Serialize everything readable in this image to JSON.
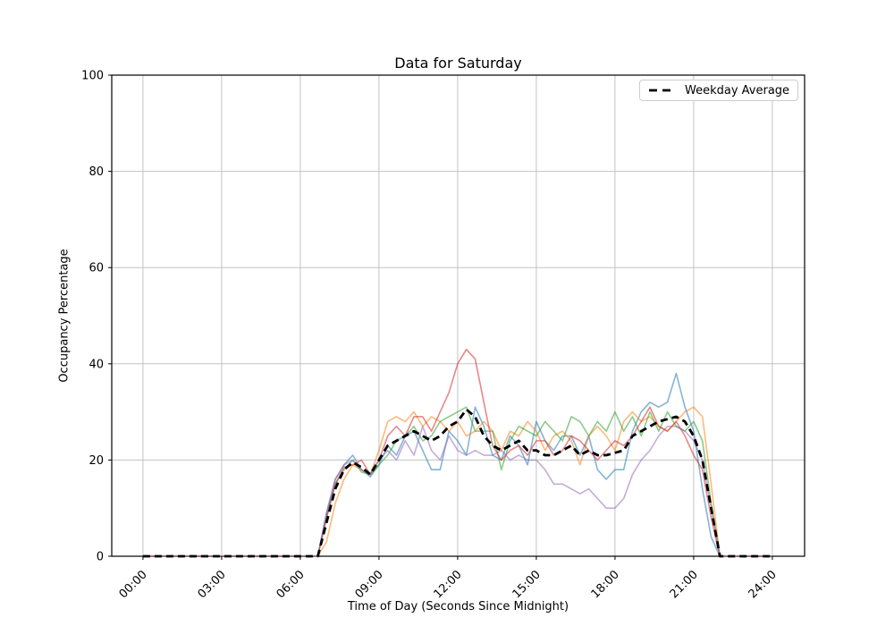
{
  "figure": {
    "title": "Data for Saturday",
    "xlabel": "Time of Day (Seconds Since Midnight)",
    "ylabel": "Occupancy Percentage",
    "background_color": "#ffffff",
    "spine_color": "#000000",
    "text_color": "#000000"
  },
  "legend": {
    "position": "top-right",
    "items": [
      {
        "label": "Weekday Average",
        "color": "#000000",
        "dashed": true
      }
    ]
  },
  "chart_data": {
    "type": "line",
    "title": "Data for Saturday",
    "xlabel": "Time of Day (Seconds Since Midnight)",
    "ylabel": "Occupancy Percentage",
    "grid": true,
    "grid_color": "#c3c3c3",
    "legend_position": "upper right",
    "xlim": [
      -1.19,
      25.23
    ],
    "ylim": [
      0,
      100
    ],
    "x_unit": "hours",
    "x_start": 0,
    "x_step": 0.3333333,
    "x_ticks": [
      {
        "hours": 0,
        "label": "00:00"
      },
      {
        "hours": 3,
        "label": "03:00"
      },
      {
        "hours": 6,
        "label": "06:00"
      },
      {
        "hours": 9,
        "label": "09:00"
      },
      {
        "hours": 12,
        "label": "12:00"
      },
      {
        "hours": 15,
        "label": "15:00"
      },
      {
        "hours": 18,
        "label": "18:00"
      },
      {
        "hours": 21,
        "label": "21:00"
      },
      {
        "hours": 24,
        "label": "24:00"
      }
    ],
    "y_ticks": [
      0,
      20,
      40,
      60,
      80,
      100
    ],
    "series": [
      {
        "data_name": "saturday-line-1",
        "legend_label": "",
        "color": "#1f77b4",
        "opacity": 0.55,
        "width": 1.6,
        "dashed": false,
        "values": [
          0,
          0,
          0,
          0,
          0,
          0,
          0,
          0,
          0,
          0,
          0,
          0,
          0,
          0,
          0,
          0,
          0,
          0,
          0,
          0,
          0,
          9,
          16,
          19,
          21,
          18,
          16.5,
          19,
          23,
          21,
          25,
          26,
          22,
          18,
          18,
          26,
          24,
          21,
          31,
          27,
          21,
          20,
          25,
          23,
          19,
          28,
          24,
          22,
          25,
          25,
          21,
          25,
          18,
          16,
          18,
          18,
          26,
          30,
          32,
          31,
          32,
          38,
          31,
          26,
          14,
          4,
          0,
          0,
          0,
          0,
          0,
          0,
          0
        ]
      },
      {
        "data_name": "saturday-line-2",
        "legend_label": "",
        "color": "#ff7f0e",
        "opacity": 0.55,
        "width": 1.6,
        "dashed": false,
        "values": [
          0,
          0,
          0,
          0,
          0,
          0,
          0,
          0,
          0,
          0,
          0,
          0,
          0,
          0,
          0,
          0,
          0,
          0,
          0,
          0,
          0,
          3,
          11,
          16,
          19,
          18,
          17,
          22,
          28,
          29,
          28,
          30,
          27,
          29,
          28,
          26,
          28,
          25,
          26,
          28,
          26,
          22,
          26,
          25,
          28,
          26,
          22,
          25,
          26,
          24,
          19,
          25,
          27,
          25,
          22,
          28,
          30,
          28,
          29,
          27,
          26,
          28,
          30,
          31,
          29,
          15,
          0,
          0,
          0,
          0,
          0,
          0,
          0
        ]
      },
      {
        "data_name": "saturday-line-3",
        "legend_label": "",
        "color": "#2ca02c",
        "opacity": 0.55,
        "width": 1.6,
        "dashed": false,
        "values": [
          0,
          0,
          0,
          0,
          0,
          0,
          0,
          0,
          0,
          0,
          0,
          0,
          0,
          0,
          0,
          0,
          0,
          0,
          0,
          0,
          0,
          8,
          15,
          18,
          20,
          17.5,
          17,
          19,
          21,
          24,
          25,
          27,
          24,
          25,
          28,
          29,
          30,
          31,
          26,
          26,
          26,
          18,
          24,
          27,
          26,
          25,
          28,
          26,
          24,
          29,
          28,
          25,
          28,
          26,
          30,
          26,
          29,
          25,
          30,
          26,
          30,
          27,
          26,
          28,
          24,
          11,
          0,
          0,
          0,
          0,
          0,
          0,
          0
        ]
      },
      {
        "data_name": "saturday-line-4",
        "legend_label": "",
        "color": "#d62728",
        "opacity": 0.55,
        "width": 1.6,
        "dashed": false,
        "values": [
          0,
          0,
          0,
          0,
          0,
          0,
          0,
          0,
          0,
          0,
          0,
          0,
          0,
          0,
          0,
          0,
          0,
          0,
          0,
          0,
          0,
          8,
          15,
          18.5,
          19,
          20,
          17,
          20,
          25,
          27,
          25,
          29,
          29,
          26,
          30,
          34,
          40,
          43,
          41,
          32,
          23,
          20,
          22,
          23,
          21,
          24,
          24,
          21,
          22,
          25,
          24,
          22,
          20,
          22,
          24,
          23,
          25,
          28,
          31,
          27,
          26,
          28,
          25,
          21,
          18,
          8,
          0,
          0,
          0,
          0,
          0,
          0,
          0
        ]
      },
      {
        "data_name": "saturday-line-5",
        "legend_label": "",
        "color": "#9467bd",
        "opacity": 0.55,
        "width": 1.6,
        "dashed": false,
        "values": [
          0,
          0,
          0,
          0,
          0,
          0,
          0,
          0,
          0,
          0,
          0,
          0,
          0,
          0,
          0,
          0,
          0,
          0,
          0,
          0,
          0,
          9,
          16,
          19,
          20,
          18,
          17,
          20,
          22,
          20,
          24,
          21,
          27,
          22,
          20,
          25,
          22,
          21,
          22,
          21,
          21,
          22,
          20,
          21,
          20,
          20,
          18,
          15,
          15,
          14,
          13,
          14,
          12,
          10,
          10,
          12,
          17,
          20,
          22,
          25,
          27,
          27,
          26,
          24,
          20,
          10,
          0,
          0,
          0,
          0,
          0,
          0,
          0
        ]
      },
      {
        "data_name": "weekday-average-line",
        "legend_label": "Weekday Average",
        "color": "#000000",
        "opacity": 1,
        "width": 2.8,
        "dashed": true,
        "values": [
          0,
          0,
          0,
          0,
          0,
          0,
          0,
          0,
          0,
          0,
          0,
          0,
          0,
          0,
          0,
          0,
          0,
          0,
          0,
          0,
          0,
          7,
          14,
          18,
          19.5,
          18.5,
          17,
          20,
          23,
          24,
          25,
          26,
          25,
          24,
          25,
          27,
          28,
          30.5,
          29,
          25,
          23,
          22,
          23,
          24,
          22,
          22,
          21,
          21,
          22,
          23,
          21,
          22,
          21,
          21,
          21.5,
          22,
          25,
          26,
          27,
          28,
          28.5,
          29,
          28,
          25,
          20,
          10,
          0,
          0,
          0,
          0,
          0,
          0,
          0
        ]
      }
    ]
  }
}
